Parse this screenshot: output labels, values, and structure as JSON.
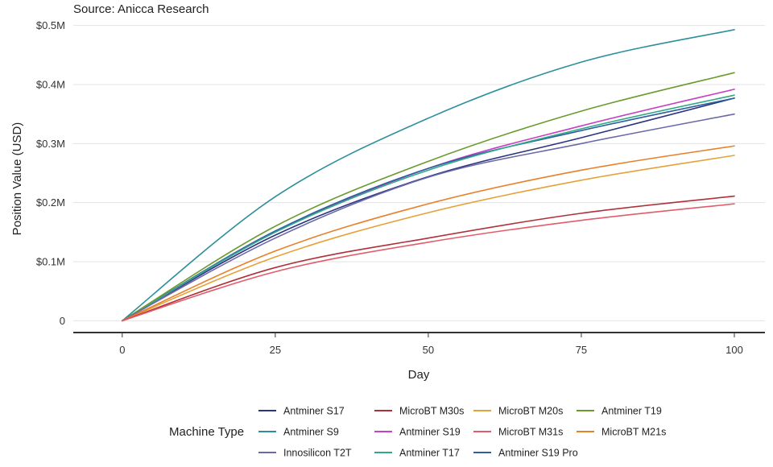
{
  "chart_data": {
    "type": "line",
    "subtitle": "Source: Anicca Research",
    "xlabel": "Day",
    "ylabel": "Position Value (USD)",
    "xlim": [
      -8,
      105
    ],
    "ylim": [
      -0.02,
      0.505
    ],
    "xticks": [
      0,
      25,
      50,
      75,
      100
    ],
    "xtick_labels": [
      "0",
      "25",
      "50",
      "75",
      "100"
    ],
    "yticks": [
      0,
      0.1,
      0.2,
      0.3,
      0.4,
      0.5
    ],
    "ytick_labels": [
      "0",
      "$0.1M",
      "$0.2M",
      "$0.3M",
      "$0.4M",
      "$0.5M"
    ],
    "grid": true,
    "legend_title": "Machine Type",
    "legend_placement": "bottom",
    "x": [
      0,
      25,
      50,
      75,
      100
    ],
    "series": [
      {
        "name": "Antminer S17",
        "color": "#2c3480",
        "values": [
          0,
          0.145,
          0.244,
          0.31,
          0.377
        ]
      },
      {
        "name": "Antminer S19",
        "color": "#c63fc6",
        "values": [
          0,
          0.15,
          0.258,
          0.33,
          0.392
        ]
      },
      {
        "name": "Antminer S19 Pro",
        "color": "#2f5f9e",
        "values": [
          0,
          0.152,
          0.258,
          0.322,
          0.377
        ]
      },
      {
        "name": "Antminer S9",
        "color": "#2b8f9c",
        "values": [
          0,
          0.21,
          0.343,
          0.438,
          0.493
        ]
      },
      {
        "name": "Antminer T17",
        "color": "#2eaa88",
        "values": [
          0,
          0.15,
          0.255,
          0.325,
          0.382
        ]
      },
      {
        "name": "Antminer T19",
        "color": "#6b9a2e",
        "values": [
          0,
          0.16,
          0.27,
          0.355,
          0.42
        ]
      },
      {
        "name": "Innosilicon T2T",
        "color": "#6b6aa8",
        "values": [
          0,
          0.14,
          0.243,
          0.3,
          0.35
        ]
      },
      {
        "name": "MicroBT M20s",
        "color": "#e6a23a",
        "values": [
          0,
          0.108,
          0.183,
          0.238,
          0.28
        ]
      },
      {
        "name": "MicroBT M21s",
        "color": "#e8802a",
        "values": [
          0,
          0.118,
          0.198,
          0.255,
          0.296
        ]
      },
      {
        "name": "MicroBT M30s",
        "color": "#b0303a",
        "values": [
          0,
          0.09,
          0.14,
          0.182,
          0.211
        ]
      },
      {
        "name": "MicroBT M31s",
        "color": "#e25b6a",
        "values": [
          0,
          0.083,
          0.133,
          0.17,
          0.198
        ]
      }
    ],
    "legend_order": [
      "Antminer S17",
      "Antminer S9",
      "Innosilicon T2T",
      "MicroBT M30s",
      "Antminer S19",
      "Antminer T17",
      "MicroBT M20s",
      "MicroBT M31s",
      "Antminer S19 Pro",
      "Antminer T19",
      "MicroBT M21s"
    ]
  }
}
